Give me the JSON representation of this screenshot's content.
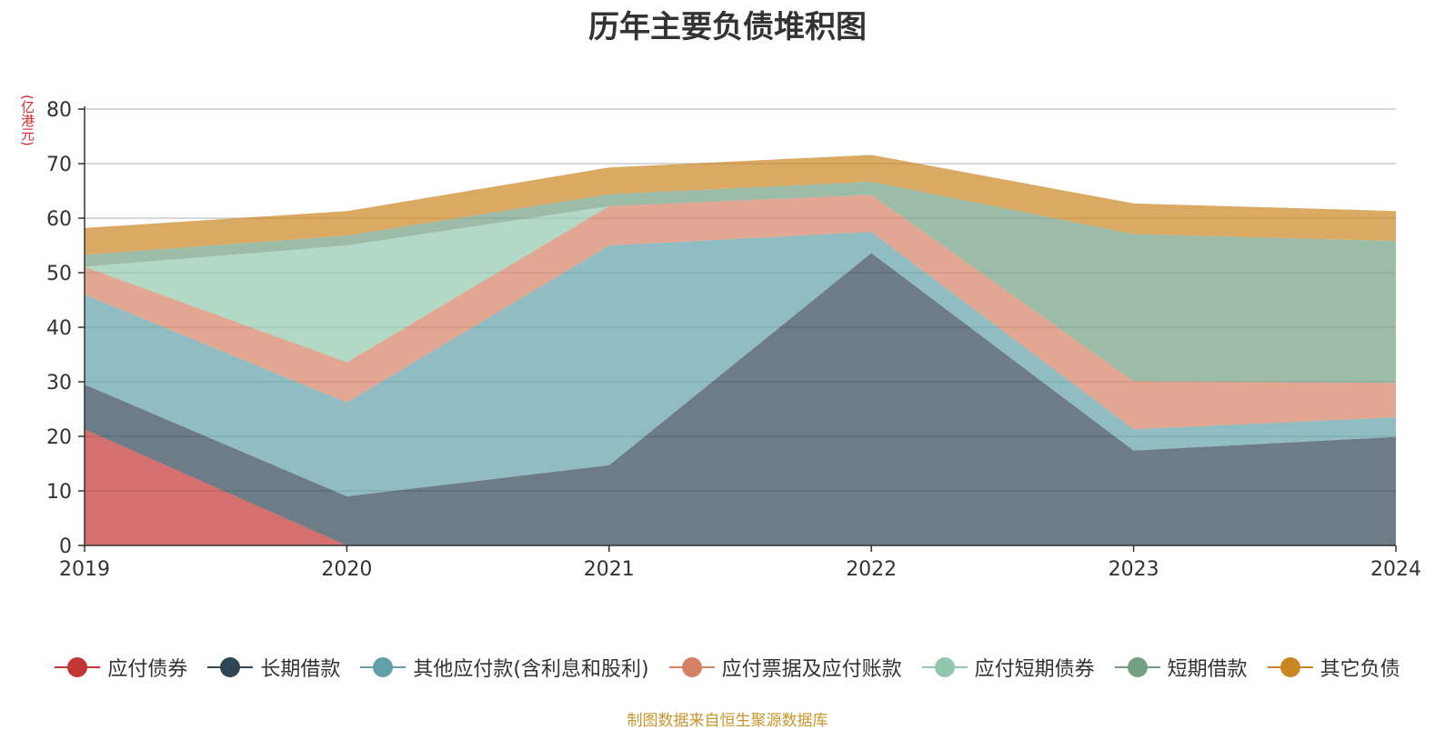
{
  "title": "历年主要负债堆积图",
  "unit_label": "(亿港元)",
  "source": "制图数据来自恒生聚源数据库",
  "chart_data": {
    "type": "area",
    "stacked": true,
    "title": "历年主要负债堆积图",
    "ylabel": "(亿港元)",
    "categories": [
      "2019",
      "2020",
      "2021",
      "2022",
      "2023",
      "2024"
    ],
    "ylim": [
      0,
      80
    ],
    "yticks": [
      0,
      10,
      20,
      30,
      40,
      50,
      60,
      70,
      80
    ],
    "grid": true,
    "legend_position": "bottom",
    "series": [
      {
        "name": "应付债券",
        "color": "#c23531",
        "values": [
          21.3,
          0,
          0,
          0,
          0,
          0
        ]
      },
      {
        "name": "长期借款",
        "color": "#2f4554",
        "values": [
          8.2,
          9.0,
          14.7,
          53.6,
          17.4,
          19.9
        ]
      },
      {
        "name": "其他应付款(含利息和股利)",
        "color": "#61a0a8",
        "values": [
          16.5,
          17.2,
          40.3,
          3.9,
          3.9,
          3.6
        ]
      },
      {
        "name": "应付票据及应付账款",
        "color": "#d48265",
        "values": [
          5.1,
          7.4,
          7.2,
          6.8,
          8.8,
          6.3
        ]
      },
      {
        "name": "应付短期债券",
        "color": "#91c7ae",
        "values": [
          0,
          21.4,
          0,
          0,
          0,
          0
        ]
      },
      {
        "name": "短期借款",
        "color": "#749f83",
        "values": [
          2.2,
          1.8,
          2.2,
          2.4,
          27.0,
          26.0
        ]
      },
      {
        "name": "其它负债",
        "color": "#ca8622",
        "values": [
          4.9,
          4.5,
          4.9,
          4.9,
          5.6,
          5.5
        ]
      }
    ]
  }
}
